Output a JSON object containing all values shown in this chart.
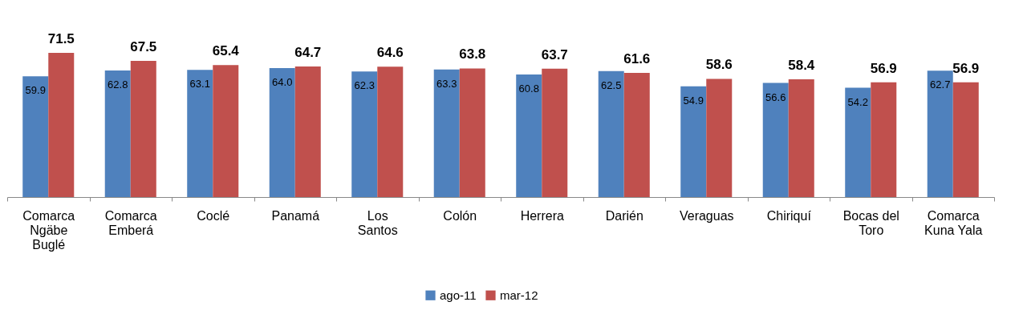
{
  "chart_data": {
    "type": "bar",
    "categories": [
      "Comarca Ngäbe Buglé",
      "Comarca Emberá",
      "Coclé",
      "Panamá",
      "Los Santos",
      "Colón",
      "Herrera",
      "Darién",
      "Veraguas",
      "Chiriquí",
      "Bocas del Toro",
      "Comarca Kuna Yala"
    ],
    "series": [
      {
        "name": "ago-11",
        "color": "#4f81bd",
        "values": [
          59.9,
          62.8,
          63.1,
          64.0,
          62.3,
          63.3,
          60.8,
          62.5,
          54.9,
          56.6,
          54.2,
          62.7
        ],
        "value_labels": [
          "59.9",
          "62.8",
          "63.1",
          "64.0",
          "62.3",
          "63.3",
          "60.8",
          "62.5",
          "54.9",
          "56.6",
          "54.2",
          "62.7"
        ]
      },
      {
        "name": "mar-12",
        "color": "#c0504d",
        "values": [
          71.5,
          67.5,
          65.4,
          64.7,
          64.6,
          63.8,
          63.7,
          61.6,
          58.6,
          58.4,
          56.9,
          56.9
        ],
        "value_labels": [
          "71.5",
          "67.5",
          "65.4",
          "64.7",
          "64.6",
          "63.8",
          "63.7",
          "61.6",
          "58.6",
          "58.4",
          "56.9",
          "56.9"
        ]
      }
    ],
    "legend": "bottom",
    "grid": false
  }
}
